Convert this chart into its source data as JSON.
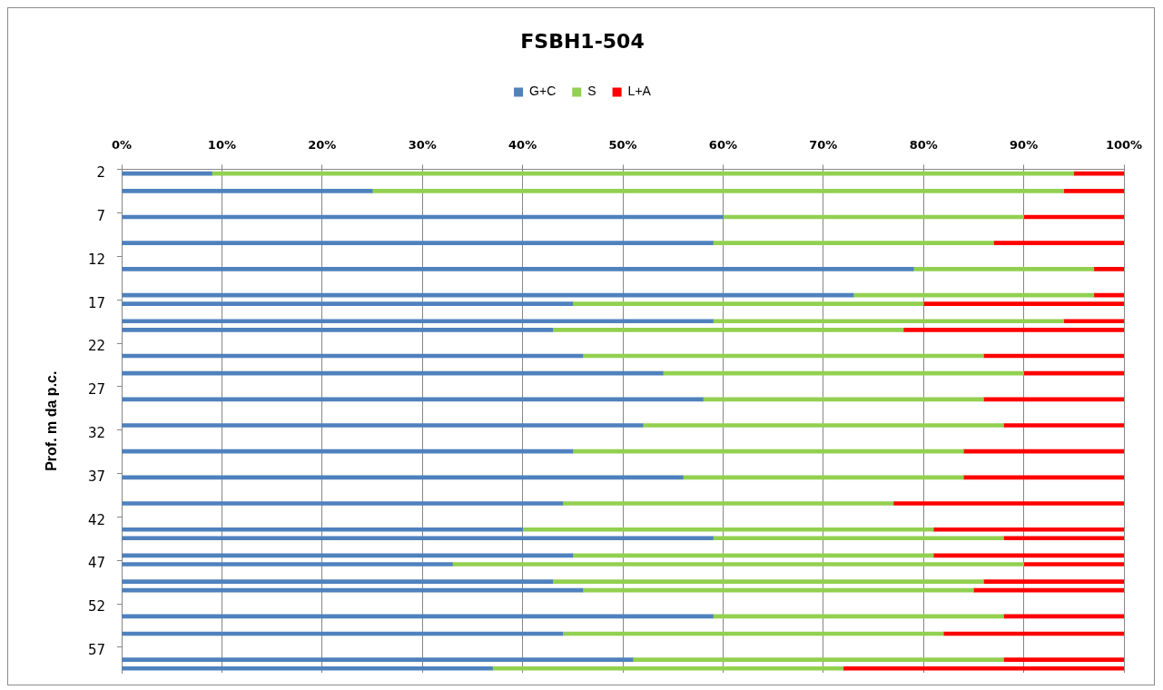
{
  "chart_data": {
    "type": "bar",
    "title": "FSBH1-504",
    "ylabel": "Prof. m da p.c.",
    "orientation": "horizontal",
    "stacked": true,
    "legend": "top",
    "grid": "x",
    "categories": [
      "2",
      null,
      null,
      null,
      null,
      "7",
      null,
      null,
      null,
      null,
      "12",
      null,
      null,
      null,
      null,
      "17",
      null,
      null,
      null,
      null,
      "22",
      null,
      null,
      null,
      null,
      "27",
      null,
      null,
      null,
      null,
      "32",
      null,
      null,
      null,
      null,
      "37",
      null,
      null,
      null,
      null,
      "42",
      null,
      null,
      null,
      null,
      "47",
      null,
      null,
      null,
      null,
      "52",
      null,
      null,
      null,
      null,
      "57",
      null,
      null
    ],
    "series": [
      {
        "name": "G+C",
        "color": "#4f81bd",
        "values": [
          9,
          null,
          25,
          null,
          null,
          60,
          null,
          null,
          59,
          null,
          null,
          79,
          null,
          null,
          73,
          45,
          null,
          59,
          43,
          null,
          null,
          46,
          null,
          54,
          null,
          null,
          58,
          null,
          null,
          52,
          null,
          null,
          45,
          null,
          null,
          56,
          null,
          null,
          44,
          null,
          null,
          40,
          59,
          null,
          45,
          33,
          null,
          43,
          46,
          null,
          null,
          59,
          null,
          44,
          null,
          null,
          51,
          37
        ]
      },
      {
        "name": "S",
        "color": "#92d050",
        "values": [
          86,
          null,
          69,
          null,
          null,
          30,
          null,
          null,
          28,
          null,
          null,
          18,
          null,
          null,
          24,
          35,
          null,
          35,
          35,
          null,
          null,
          40,
          null,
          36,
          null,
          null,
          28,
          null,
          null,
          36,
          null,
          null,
          39,
          null,
          null,
          28,
          null,
          null,
          33,
          null,
          null,
          41,
          29,
          null,
          36,
          57,
          null,
          43,
          39,
          null,
          null,
          29,
          null,
          38,
          null,
          null,
          37,
          35
        ]
      },
      {
        "name": "L+A",
        "color": "#ff0000",
        "values": [
          5,
          null,
          6,
          null,
          null,
          10,
          null,
          null,
          13,
          null,
          null,
          3,
          null,
          null,
          3,
          20,
          null,
          6,
          22,
          null,
          null,
          14,
          null,
          10,
          null,
          null,
          14,
          null,
          null,
          12,
          null,
          null,
          16,
          null,
          null,
          16,
          null,
          null,
          23,
          null,
          null,
          19,
          12,
          null,
          19,
          10,
          null,
          14,
          15,
          null,
          null,
          12,
          null,
          18,
          null,
          null,
          12,
          28
        ]
      }
    ],
    "xlim": [
      0,
      100
    ],
    "xticks": [
      {
        "value": 0,
        "label": "0%"
      },
      {
        "value": 10,
        "label": "10%"
      },
      {
        "value": 20,
        "label": "20%"
      },
      {
        "value": 30,
        "label": "30%"
      },
      {
        "value": 40,
        "label": "40%"
      },
      {
        "value": 50,
        "label": "50%"
      },
      {
        "value": 60,
        "label": "60%"
      },
      {
        "value": 70,
        "label": "70%"
      },
      {
        "value": 80,
        "label": "80%"
      },
      {
        "value": 90,
        "label": "90%"
      },
      {
        "value": 100,
        "label": "100%"
      }
    ]
  }
}
